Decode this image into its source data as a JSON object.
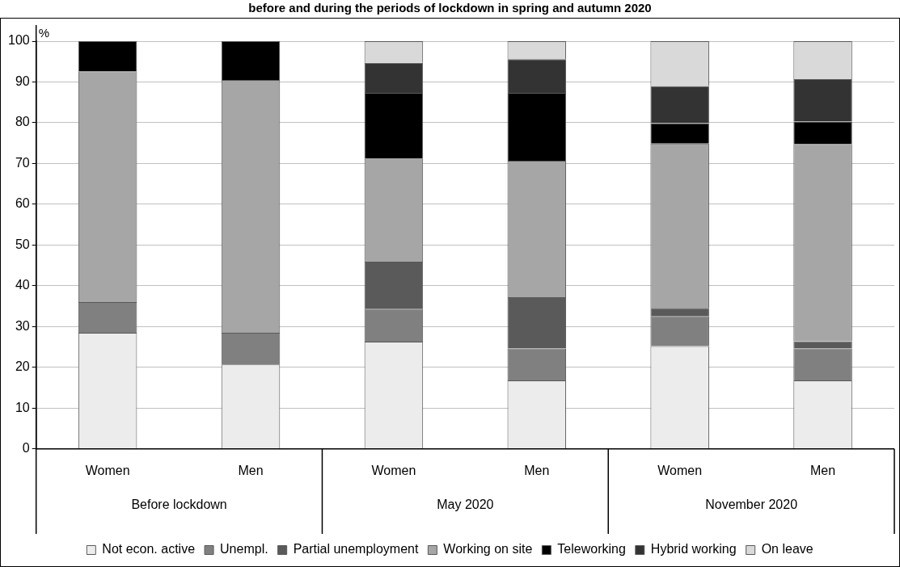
{
  "chart_data": {
    "type": "bar",
    "title": "before and during the periods of lockdown in spring and autumn 2020",
    "ylabel": "%",
    "categories": [
      "Women",
      "Men",
      "Women",
      "Men",
      "Women",
      "Men"
    ],
    "annotations": [
      "Before lockdown",
      "May 2020",
      "November 2020"
    ],
    "stacked": true,
    "ylim": [
      0,
      100
    ],
    "yticks": [
      0,
      10,
      20,
      30,
      40,
      50,
      60,
      70,
      80,
      90,
      100
    ],
    "grid": "y",
    "legend": "bottom",
    "series": [
      {
        "name": "Not econ. active",
        "color": "#ececec",
        "values": [
          28.5,
          20.7,
          26.3,
          16.8,
          25.2,
          16.8
        ]
      },
      {
        "name": "Unempl.",
        "color": "#808080",
        "values": [
          7.5,
          7.8,
          8.1,
          7.8,
          7.4,
          7.8
        ]
      },
      {
        "name": "Partial unemployment",
        "color": "#5a5a5a",
        "values": [
          0,
          0,
          11.5,
          12.6,
          2.0,
          1.8
        ]
      },
      {
        "name": "Working on site",
        "color": "#a6a6a6",
        "values": [
          56.6,
          62.0,
          25.3,
          33.5,
          40.3,
          48.4
        ]
      },
      {
        "name": "Teleworking",
        "color": "#000000",
        "values": [
          7.4,
          9.5,
          16.1,
          16.6,
          5.0,
          5.5
        ]
      },
      {
        "name": "Hybrid working",
        "color": "#333333",
        "values": [
          0,
          0,
          7.4,
          8.3,
          9.1,
          10.4
        ]
      },
      {
        "name": "On leave",
        "color": "#d9d9d9",
        "values": [
          0,
          0,
          5.3,
          4.4,
          11.0,
          9.3
        ]
      }
    ]
  }
}
